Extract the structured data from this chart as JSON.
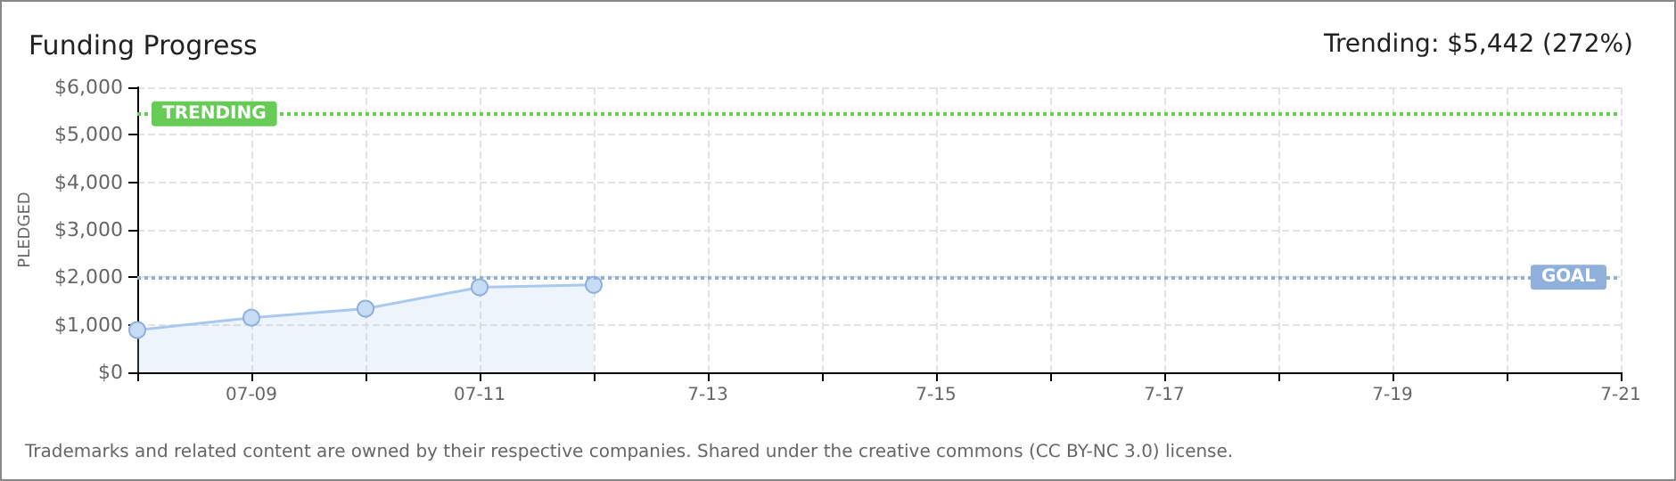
{
  "chart_data": {
    "type": "area",
    "title": "Funding Progress",
    "subtitle": "Trending: $5,442 (272%)",
    "ylabel": "PLEDGED",
    "categories": [
      null,
      "07-09",
      null,
      "07-11",
      null,
      "7-13",
      null,
      "7-15",
      null,
      "7-17",
      null,
      "7-19",
      null,
      "7-21"
    ],
    "series": [
      {
        "color": "#a9c9ef",
        "values": [
          890,
          1150,
          1340,
          1790,
          1840,
          null,
          null,
          null,
          null,
          null,
          null,
          null,
          null,
          null
        ]
      }
    ],
    "ylim": [
      0,
      6000
    ],
    "yticks": [
      {
        "value": 0,
        "label": "$0"
      },
      {
        "value": 1000,
        "label": "$1,000"
      },
      {
        "value": 2000,
        "label": "$2,000"
      },
      {
        "value": 3000,
        "label": "$3,000"
      },
      {
        "value": 4000,
        "label": "$4,000"
      },
      {
        "value": 5000,
        "label": "$5,000"
      },
      {
        "value": 6000,
        "label": "$6,000"
      }
    ],
    "ref_lines": [
      {
        "axis": "y",
        "value": 5442,
        "label": "TRENDING",
        "color": "#66cc55",
        "line_style": "dotted"
      },
      {
        "axis": "y",
        "value": 2000,
        "label": "GOAL",
        "color": "#8fb0db",
        "line_style": "dotted"
      }
    ],
    "grid": true,
    "marker": "circle",
    "annotations": [
      "Trademarks and related content are owned by their respective companies. Shared under the creative commons (CC BY-NC 3.0) license."
    ]
  }
}
